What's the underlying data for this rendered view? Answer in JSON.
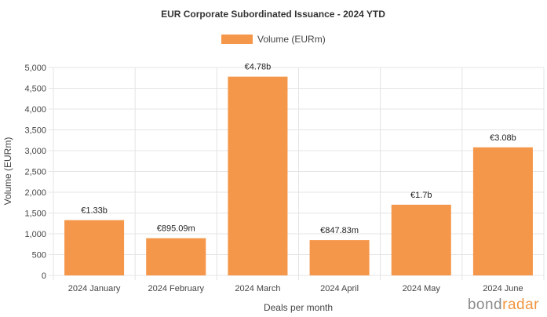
{
  "chart_data": {
    "type": "bar",
    "title": "EUR Corporate Subordinated Issuance - 2024 YTD",
    "xlabel": "Deals per month",
    "ylabel": "Volume (EURm)",
    "categories": [
      "2024 January",
      "2024 February",
      "2024 March",
      "2024 April",
      "2024 May",
      "2024 June"
    ],
    "series": [
      {
        "name": "Volume (EURm)",
        "color": "#f5974a",
        "values": [
          1330,
          895.09,
          4780,
          847.83,
          1700,
          3080
        ],
        "data_labels": [
          "€1.33b",
          "€895.09m",
          "€4.78b",
          "€847.83m",
          "€1.7b",
          "€3.08b"
        ]
      }
    ],
    "ylim": [
      0,
      5000
    ],
    "yticks": [
      0,
      500,
      1000,
      1500,
      2000,
      2500,
      3000,
      3500,
      4000,
      4500,
      5000
    ],
    "ytick_labels": [
      "0",
      "500",
      "1,000",
      "1,500",
      "2,000",
      "2,500",
      "3,000",
      "3,500",
      "4,000",
      "4,500",
      "5,000"
    ],
    "grid": true,
    "legend": "top-center"
  },
  "brand": {
    "part1": "bond",
    "part2": "radar"
  }
}
